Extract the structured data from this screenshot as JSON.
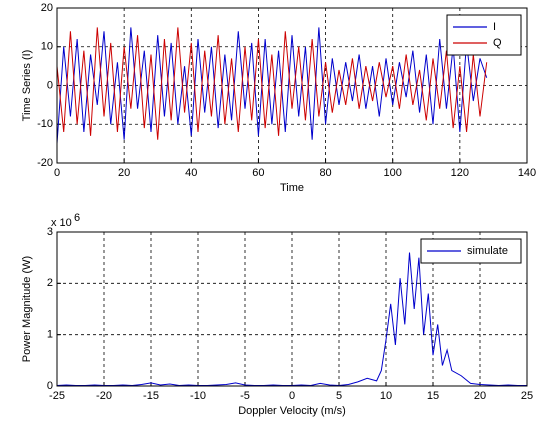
{
  "chart_data": [
    {
      "type": "line",
      "xlabel": "Time",
      "ylabel": "Time Series (I)",
      "x": [
        0,
        2,
        4,
        6,
        8,
        10,
        12,
        14,
        16,
        18,
        20,
        22,
        24,
        26,
        28,
        30,
        32,
        34,
        36,
        38,
        40,
        42,
        44,
        46,
        48,
        50,
        52,
        54,
        56,
        58,
        60,
        62,
        64,
        66,
        68,
        70,
        72,
        74,
        76,
        78,
        80,
        82,
        84,
        86,
        88,
        90,
        92,
        94,
        96,
        98,
        100,
        102,
        104,
        106,
        108,
        110,
        112,
        114,
        116,
        118,
        120,
        122,
        124,
        126,
        128
      ],
      "series": [
        {
          "name": "I",
          "color": "#0000cc",
          "values": [
            -15,
            10,
            -8,
            12,
            -12,
            8,
            -5,
            14,
            -10,
            6,
            -14,
            15,
            -6,
            9,
            -12,
            13,
            -8,
            11,
            -10,
            5,
            -13,
            12,
            -7,
            10,
            -11,
            8,
            -9,
            14,
            -6,
            11,
            -13,
            12,
            -10,
            9,
            -12,
            13,
            -8,
            10,
            -14,
            15,
            -10,
            7,
            -5,
            6,
            -4,
            8,
            -6,
            5,
            -8,
            7,
            -5,
            6,
            -3,
            9,
            -7,
            8,
            -10,
            12,
            -6,
            10,
            -12,
            11,
            -4,
            7,
            2
          ]
        },
        {
          "name": "Q",
          "color": "#cc0000",
          "values": [
            5,
            -12,
            14,
            -10,
            9,
            -13,
            15,
            -8,
            11,
            -12,
            10,
            -6,
            13,
            -11,
            8,
            -14,
            12,
            -9,
            15,
            -7,
            11,
            -12,
            9,
            -8,
            13,
            -10,
            7,
            -12,
            10,
            -9,
            12,
            -11,
            8,
            -13,
            14,
            -6,
            10,
            -9,
            12,
            -8,
            6,
            -7,
            4,
            -5,
            7,
            -6,
            5,
            -4,
            6,
            -3,
            5,
            -6,
            8,
            -5,
            4,
            -9,
            7,
            -6,
            9,
            -11,
            5,
            -12,
            8,
            -8,
            6
          ]
        }
      ],
      "xlim": [
        0,
        140
      ],
      "xticks": [
        0,
        20,
        40,
        60,
        80,
        100,
        120,
        140
      ],
      "ylim": [
        -20,
        20
      ],
      "yticks": [
        -20,
        -10,
        0,
        10,
        20
      ],
      "grid": true,
      "legend": "upper right"
    },
    {
      "type": "line",
      "xlabel": "Doppler Velocity (m/s)",
      "ylabel": "Power Magnitude (W)",
      "y_scale_label": "x 10",
      "y_scale_exponent": "6",
      "x": [
        -25,
        -24,
        -23,
        -22,
        -21,
        -20,
        -19,
        -18,
        -17,
        -16,
        -15,
        -14,
        -13,
        -12,
        -11,
        -10,
        -9,
        -8,
        -7,
        -6,
        -5,
        -4,
        -3,
        -2,
        -1,
        0,
        1,
        2,
        3,
        4,
        5,
        6,
        7,
        8,
        9,
        9.5,
        10,
        10.5,
        11,
        11.5,
        12,
        12.5,
        13,
        13.5,
        14,
        14.5,
        15,
        15.5,
        16,
        16.5,
        17,
        18,
        19,
        20,
        21,
        22,
        23,
        24,
        25
      ],
      "series": [
        {
          "name": "simulate",
          "color": "#0000cc",
          "values": [
            0.01,
            0.02,
            0.01,
            0.01,
            0.02,
            0.01,
            0.01,
            0.02,
            0.01,
            0.03,
            0.06,
            0.02,
            0.04,
            0.01,
            0.02,
            0.01,
            0.01,
            0.02,
            0.03,
            0.06,
            0.02,
            0.01,
            0.01,
            0.02,
            0.01,
            0.01,
            0.02,
            0.01,
            0.05,
            0.02,
            0.01,
            0.03,
            0.08,
            0.15,
            0.1,
            0.3,
            0.9,
            1.6,
            0.8,
            2.1,
            1.2,
            2.6,
            1.5,
            2.5,
            1.0,
            1.8,
            0.6,
            1.2,
            0.4,
            0.7,
            0.3,
            0.2,
            0.05,
            0.03,
            0.02,
            0.01,
            0.02,
            0.01,
            0.01
          ]
        }
      ],
      "xlim": [
        -25,
        25
      ],
      "xticks": [
        -25,
        -20,
        -15,
        -10,
        -5,
        0,
        5,
        10,
        15,
        20,
        25
      ],
      "ylim": [
        0,
        3
      ],
      "yticks": [
        0,
        1,
        2,
        3
      ],
      "grid": true,
      "legend": "upper right"
    }
  ]
}
